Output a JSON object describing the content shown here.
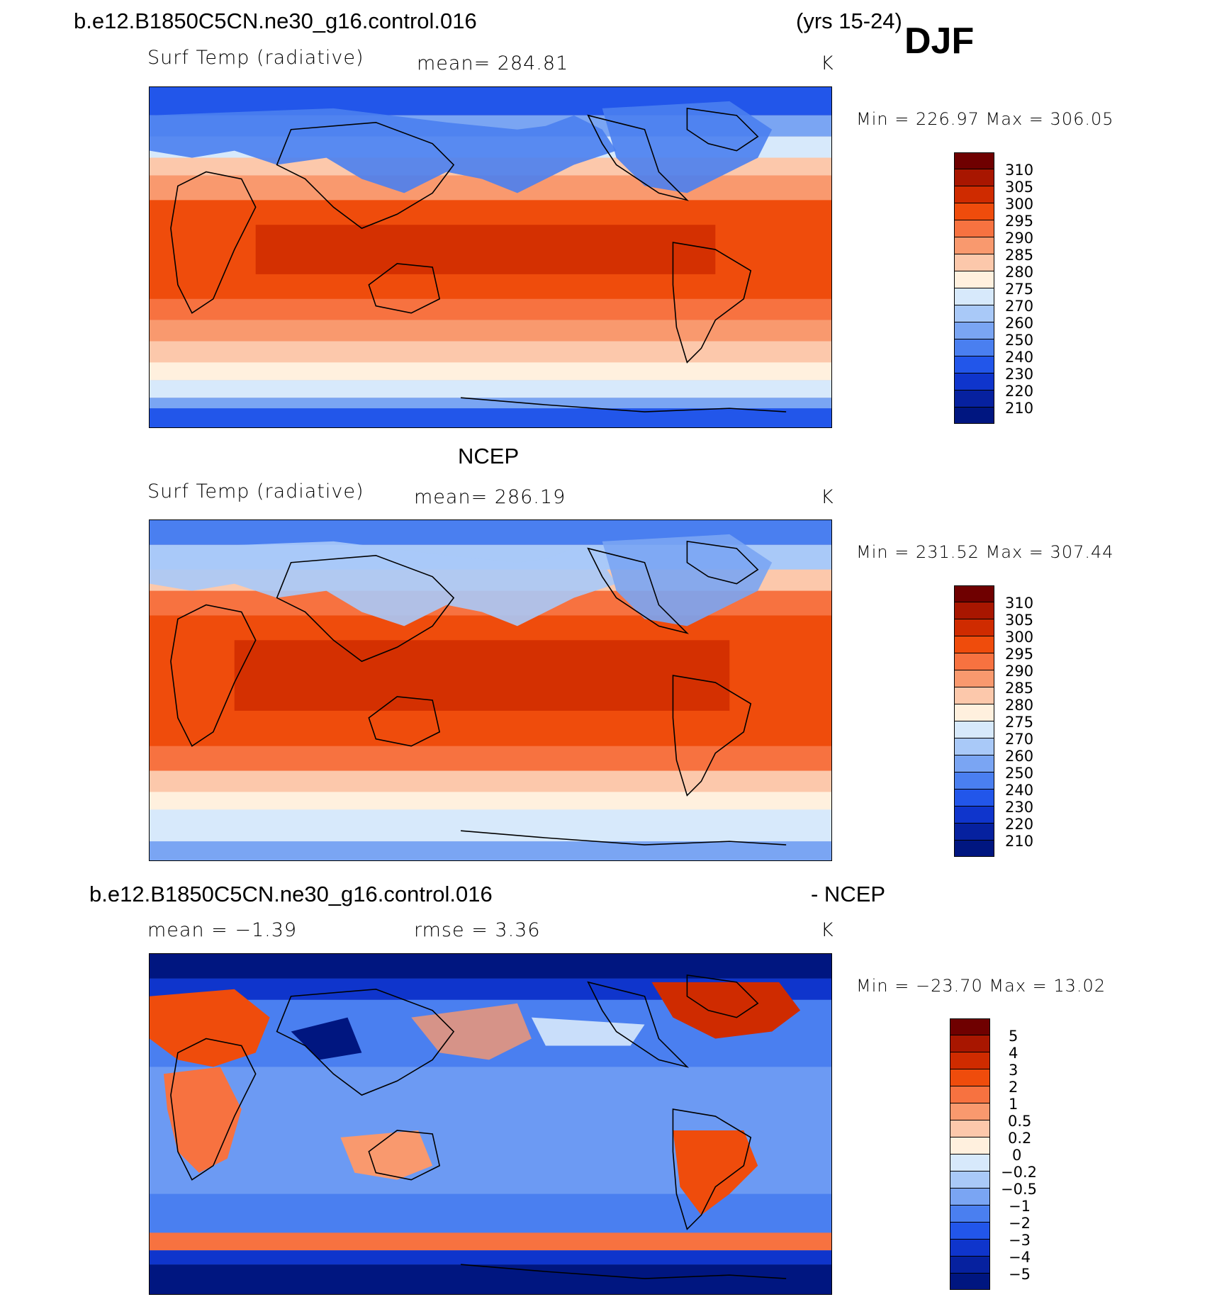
{
  "header": {
    "case_name": "b.e12.B1850C5CN.ne30_g16.control.016",
    "years": "(yrs 15-24)",
    "season": "DJF"
  },
  "panels": [
    {
      "id": "model",
      "heading": "",
      "variable": "Surf Temp (radiative)",
      "stat": "mean=  284.81",
      "units": "K",
      "minmax": "Min  =  226.97  Max  =  306.05",
      "levels": [
        "310",
        "305",
        "300",
        "295",
        "290",
        "285",
        "280",
        "275",
        "270",
        "260",
        "250",
        "240",
        "230",
        "220",
        "210"
      ]
    },
    {
      "id": "obs",
      "heading": "NCEP",
      "variable": "Surf Temp (radiative)",
      "stat": "mean=  286.19",
      "units": "K",
      "minmax": "Min  =  231.52  Max  =  307.44",
      "levels": [
        "310",
        "305",
        "300",
        "295",
        "290",
        "285",
        "280",
        "275",
        "270",
        "260",
        "250",
        "240",
        "230",
        "220",
        "210"
      ]
    },
    {
      "id": "diff",
      "heading": "b.e12.B1850C5CN.ne30_g16.control.016",
      "heading_right": "- NCEP",
      "variable": "mean  =    −1.39",
      "stat": "rmse  =      3.36",
      "units": "K",
      "minmax": "Min  =  −23.70  Max  =     13.02",
      "levels": [
        "5",
        "4",
        "3",
        "2",
        "1",
        "0.5",
        "0.2",
        "0",
        "−0.2",
        "−0.5",
        "−1",
        "−2",
        "−3",
        "−4",
        "−5"
      ]
    }
  ],
  "colors": {
    "abs_scale": [
      "#6f0000",
      "#a81600",
      "#cf2b00",
      "#ef4c0c",
      "#f77240",
      "#f9996e",
      "#fcc8ab",
      "#fff0de",
      "#d7e9fb",
      "#a9c9f8",
      "#7aa5f3",
      "#4a7ff0",
      "#2256ea",
      "#0f35cc",
      "#06219f",
      "#001680"
    ],
    "diff_scale": [
      "#6f0000",
      "#a81600",
      "#cf2b00",
      "#ef4c0c",
      "#f77240",
      "#f9996e",
      "#fcc8ab",
      "#fff0de",
      "#d7e9fb",
      "#a9c9f8",
      "#7aa5f3",
      "#4a7ff0",
      "#2256ea",
      "#0f35cc",
      "#06219f",
      "#001680"
    ]
  }
}
